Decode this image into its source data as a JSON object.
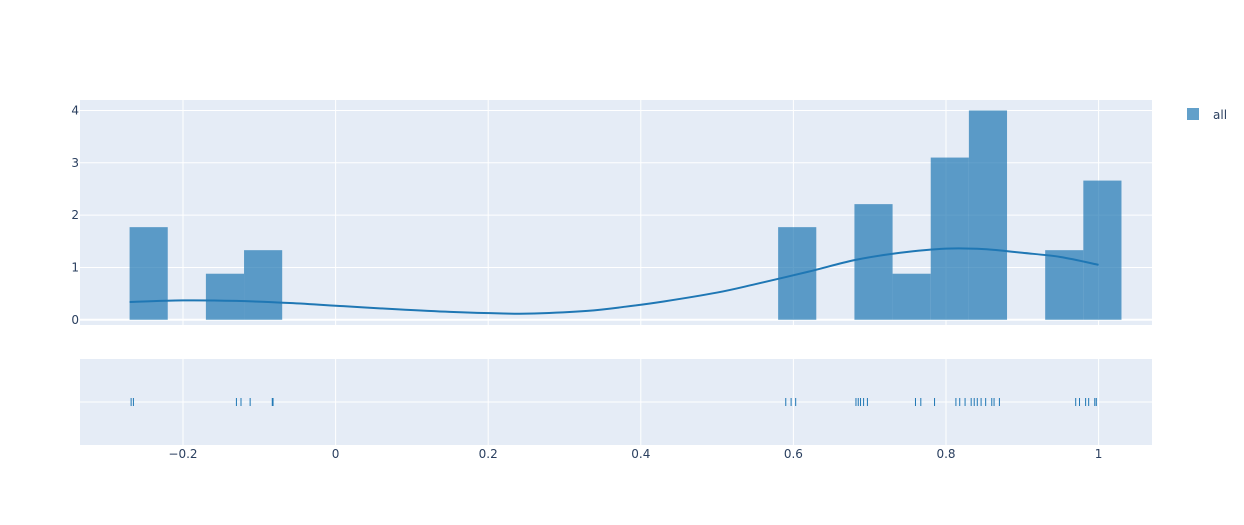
{
  "chart_data": {
    "type": "bar",
    "subtype": "distplot (histogram + kde curve + rug)",
    "legend": {
      "entries": [
        "all"
      ],
      "placement": "top-right"
    },
    "colors": {
      "series": "#1f77b4",
      "plot_bg": "#e5ecf6",
      "grid": "#ffffff",
      "text": "#2a3f5f"
    },
    "grid": true,
    "xlim": [
      -0.335,
      1.07
    ],
    "ylim": [
      -0.1,
      4.2
    ],
    "x_ticks": [
      -0.2,
      0,
      0.2,
      0.4,
      0.6,
      0.8,
      1
    ],
    "x_tick_labels": [
      "−0.2",
      "0",
      "0.2",
      "0.4",
      "0.6",
      "0.8",
      "1"
    ],
    "y_ticks": [
      0,
      1,
      2,
      3,
      4
    ],
    "y_tick_labels": [
      "0",
      "1",
      "2",
      "3",
      "4"
    ],
    "series": [
      {
        "name": "all",
        "kind": "histogram",
        "bin_width": 0.05,
        "bins": [
          {
            "x0": -0.27,
            "x1": -0.22,
            "y": 1.77
          },
          {
            "x0": -0.17,
            "x1": -0.12,
            "y": 0.88
          },
          {
            "x0": -0.12,
            "x1": -0.07,
            "y": 1.33
          },
          {
            "x0": 0.58,
            "x1": 0.63,
            "y": 1.77
          },
          {
            "x0": 0.68,
            "x1": 0.73,
            "y": 2.21
          },
          {
            "x0": 0.73,
            "x1": 0.78,
            "y": 0.88
          },
          {
            "x0": 0.78,
            "x1": 0.83,
            "y": 3.1
          },
          {
            "x0": 0.83,
            "x1": 0.88,
            "y": 4.0
          },
          {
            "x0": 0.93,
            "x1": 0.98,
            "y": 1.33
          },
          {
            "x0": 0.98,
            "x1": 1.03,
            "y": 2.66
          }
        ]
      },
      {
        "kind": "kde",
        "x": [
          -0.27,
          -0.2,
          -0.13,
          -0.06,
          0.01,
          0.08,
          0.15,
          0.22,
          0.26,
          0.33,
          0.38,
          0.43,
          0.5,
          0.55,
          0.62,
          0.68,
          0.74,
          0.8,
          0.85,
          0.9,
          0.95,
          1.0
        ],
        "y": [
          0.34,
          0.37,
          0.36,
          0.32,
          0.26,
          0.2,
          0.15,
          0.12,
          0.12,
          0.17,
          0.25,
          0.35,
          0.52,
          0.68,
          0.92,
          1.14,
          1.28,
          1.36,
          1.35,
          1.28,
          1.2,
          1.05
        ]
      },
      {
        "kind": "rug",
        "x": [
          -0.268,
          -0.265,
          -0.13,
          -0.124,
          -0.112,
          -0.083,
          -0.082,
          0.59,
          0.597,
          0.603,
          0.682,
          0.685,
          0.688,
          0.692,
          0.697,
          0.76,
          0.767,
          0.785,
          0.813,
          0.818,
          0.825,
          0.833,
          0.837,
          0.841,
          0.846,
          0.852,
          0.86,
          0.863,
          0.87,
          0.97,
          0.975,
          0.983,
          0.987,
          0.995,
          0.997
        ]
      }
    ]
  }
}
